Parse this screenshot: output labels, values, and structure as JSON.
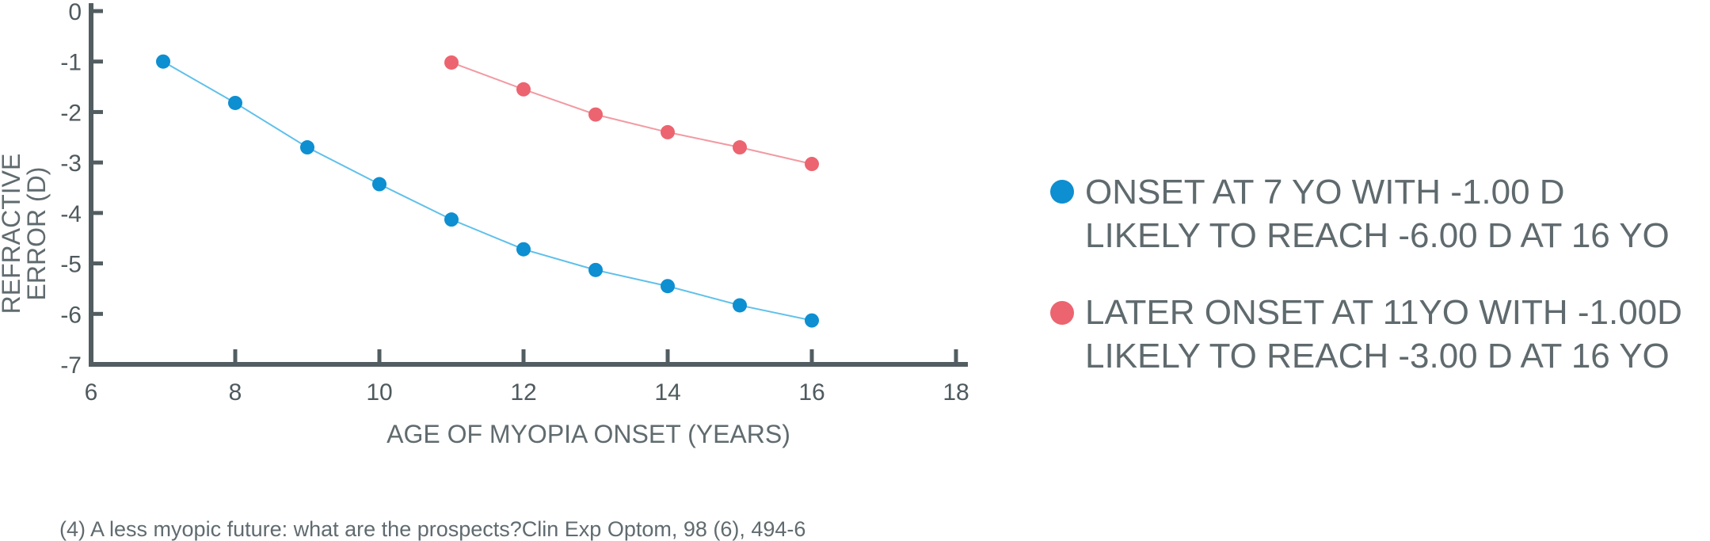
{
  "colors": {
    "axis": "#525d61",
    "text": "#5f6a6e",
    "series_early": "#0d8fd1",
    "series_late": "#ec6470",
    "line_early": "#5fc0ea",
    "line_late": "#f29aa2"
  },
  "chart_data": {
    "type": "line",
    "title": "",
    "xlabel": "AGE OF MYOPIA ONSET (YEARS)",
    "ylabel_lines": [
      "REFRACTIVE",
      "ERROR (D)"
    ],
    "xlim": [
      6,
      18
    ],
    "ylim": [
      -7,
      0
    ],
    "x_ticks": [
      "6",
      "8",
      "10",
      "12",
      "14",
      "16",
      "18"
    ],
    "y_ticks": [
      "0",
      "-1",
      "-2",
      "-3",
      "-4",
      "-5",
      "-6",
      "-7"
    ],
    "grid": false,
    "legend_position": "right",
    "series": [
      {
        "key": "early",
        "legend_lines": [
          "ONSET AT 7 YO WITH -1.00 D",
          "LIKELY TO REACH -6.00 D AT 16 YO"
        ],
        "x": [
          7,
          8,
          9,
          10,
          11,
          12,
          13,
          14,
          15,
          16
        ],
        "y": [
          -1.0,
          -1.82,
          -2.7,
          -3.43,
          -4.13,
          -4.72,
          -5.13,
          -5.45,
          -5.83,
          -6.13
        ]
      },
      {
        "key": "late",
        "legend_lines": [
          "LATER ONSET AT 11YO WITH -1.00D",
          "LIKELY TO REACH -3.00 D AT 16 YO"
        ],
        "x": [
          11,
          12,
          13,
          14,
          15,
          16
        ],
        "y": [
          -1.02,
          -1.55,
          -2.05,
          -2.4,
          -2.7,
          -3.03
        ]
      }
    ]
  },
  "citation": "(4) A less myopic future: what are the prospects?Clin Exp Optom, 98 (6), 494-6"
}
